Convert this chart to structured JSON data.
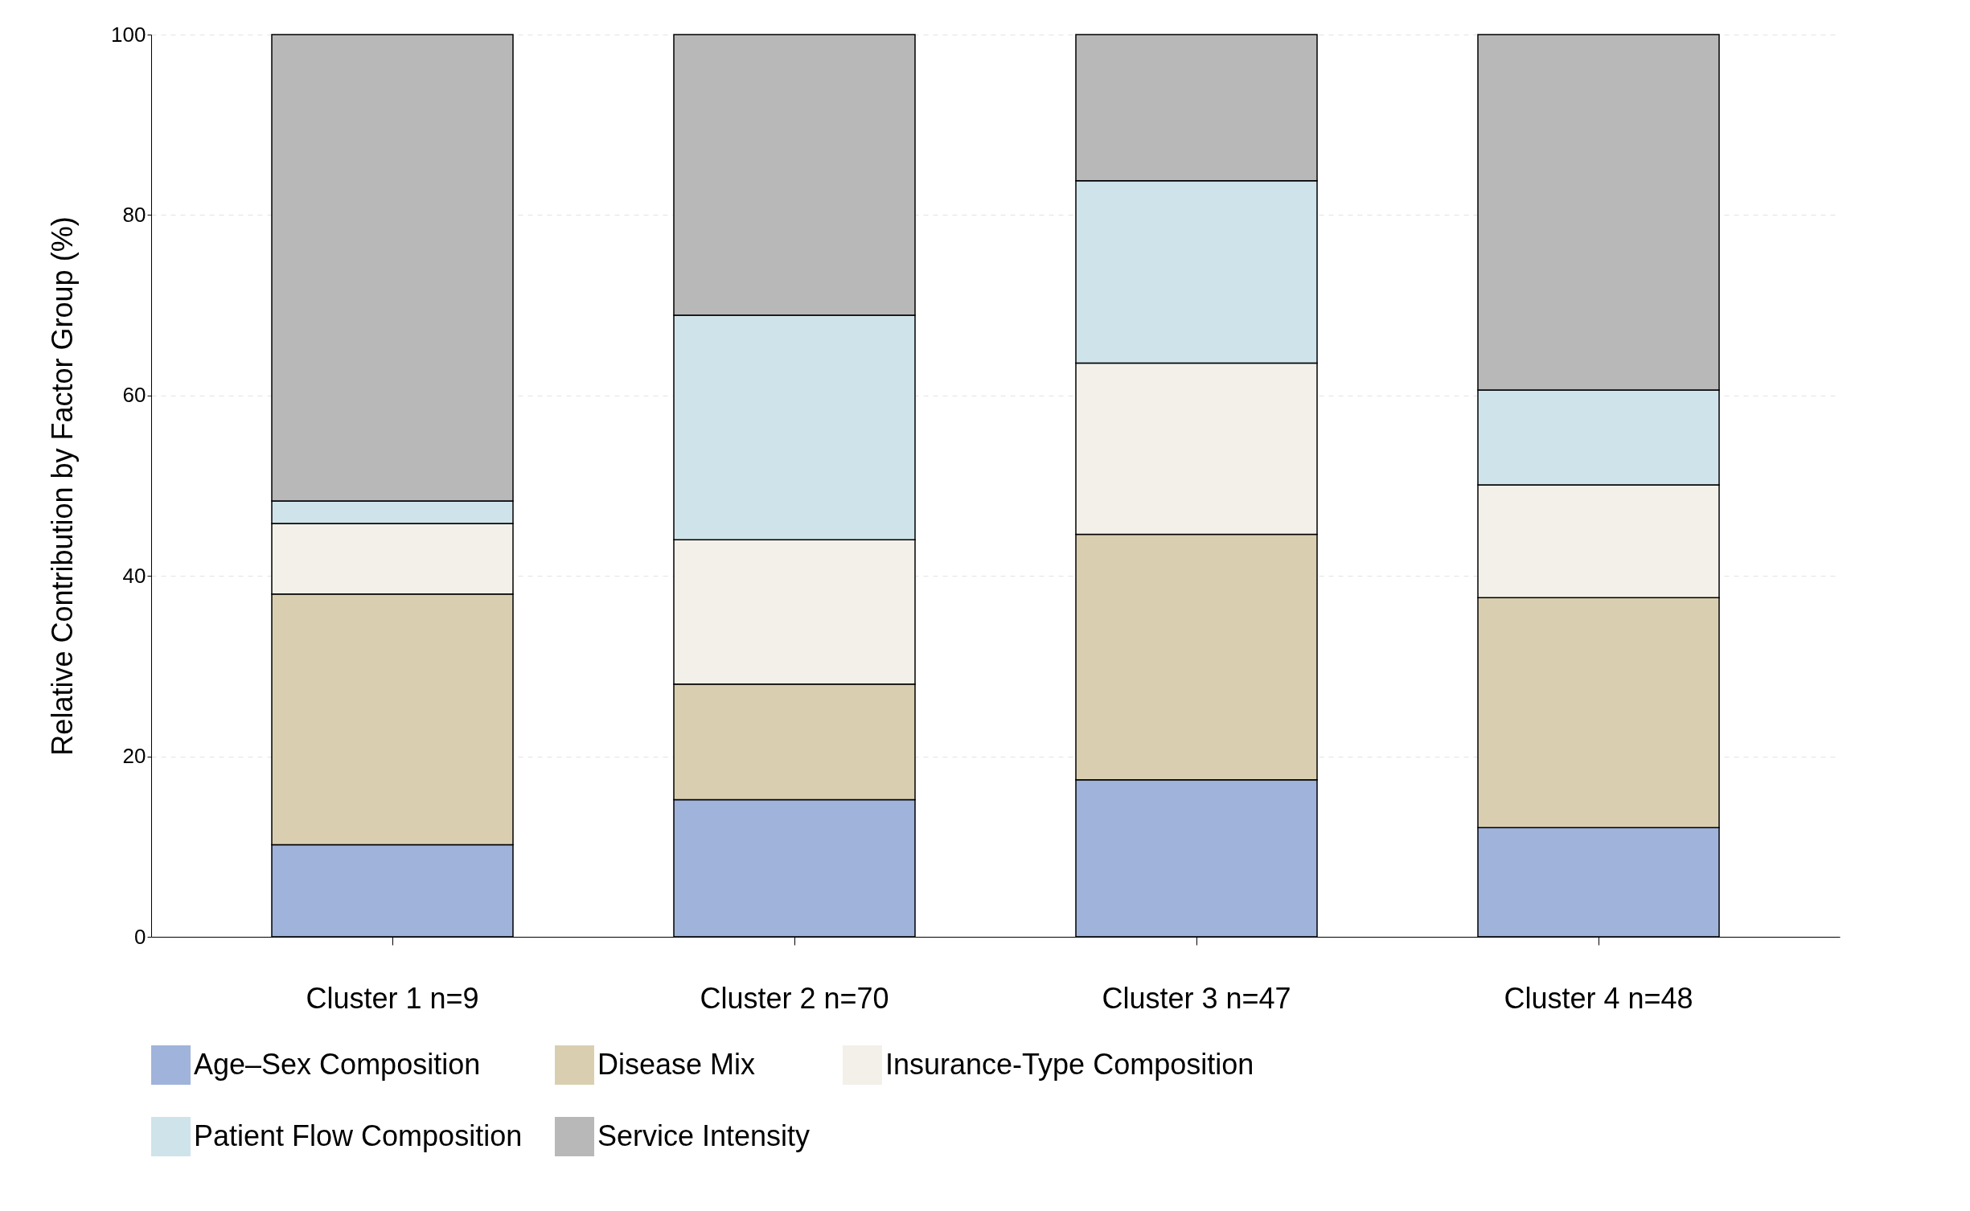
{
  "chart_data": {
    "type": "bar",
    "stacked": true,
    "ylabel": "Relative Contribution by Factor Group (%)",
    "categories": [
      "Cluster 1 n=9",
      "Cluster 2 n=70",
      "Cluster 3 n=47",
      "Cluster 4 n=48"
    ],
    "series": [
      {
        "name": "Age–Sex Composition",
        "color": "#9fb3db",
        "values": [
          10.2,
          15.2,
          17.4,
          12.1
        ]
      },
      {
        "name": "Disease Mix",
        "color": "#d9cfb0",
        "values": [
          27.8,
          12.8,
          27.2,
          25.5
        ]
      },
      {
        "name": "Insurance-Type Composition",
        "color": "#f2f0e8",
        "values": [
          7.8,
          16.0,
          19.0,
          12.5
        ]
      },
      {
        "name": "Patient Flow Composition",
        "color": "#cfe3ea",
        "values": [
          2.5,
          24.9,
          20.2,
          10.5
        ]
      },
      {
        "name": "Service Intensity",
        "color": "#b8b8b8",
        "values": [
          51.7,
          31.1,
          16.2,
          39.4
        ]
      }
    ],
    "ylim": [
      0,
      100
    ],
    "yticks": [
      0,
      20,
      40,
      60,
      80,
      100
    ],
    "grid": "y",
    "legend": "bottom"
  }
}
